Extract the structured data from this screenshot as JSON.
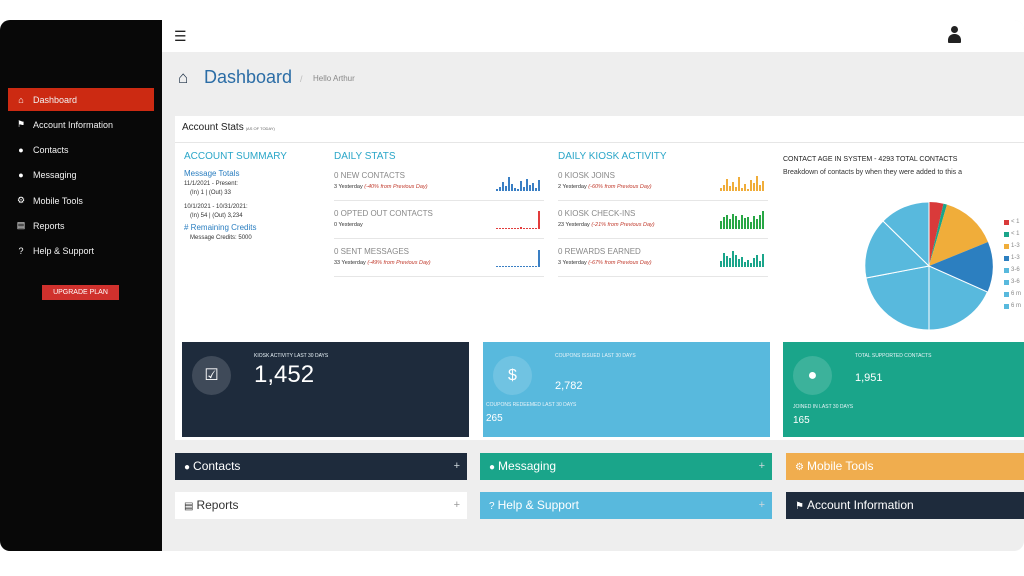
{
  "sidebar": {
    "items": [
      {
        "label": "Dashboard",
        "icon": "home-icon",
        "active": true
      },
      {
        "label": "Account Information",
        "icon": "flag-icon"
      },
      {
        "label": "Contacts",
        "icon": "users-icon"
      },
      {
        "label": "Messaging",
        "icon": "chat-icon"
      },
      {
        "label": "Mobile Tools",
        "icon": "gears-icon"
      },
      {
        "label": "Reports",
        "icon": "bar-chart-icon"
      },
      {
        "label": "Help & Support",
        "icon": "question-icon"
      }
    ],
    "upgrade_label": "UPGRADE PLAN"
  },
  "header": {
    "title": "Dashboard",
    "separator": "/",
    "greeting": "Hello Arthur"
  },
  "account_stats": {
    "title": "Account Stats",
    "subtitle": "(AS OF TODAY)",
    "summary": {
      "heading": "ACCOUNT SUMMARY",
      "message_totals_label": "Message Totals",
      "period1": "11/1/2021 - Present:",
      "period1_values": "(In) 1 | (Out) 33",
      "period2": "10/1/2021 - 10/31/2021:",
      "period2_values": "(In) 54 | (Out) 3,234",
      "credits_label": "# Remaining Credits",
      "credits_value": "Message Credits: 5000"
    },
    "daily_stats": {
      "heading": "DAILY STATS",
      "rows": [
        {
          "label": "0 NEW CONTACTS",
          "sub": "3 Yesterday",
          "change": "(-40% from Previous Day)"
        },
        {
          "label": "0 OPTED OUT CONTACTS",
          "sub": "0 Yesterday",
          "change": ""
        },
        {
          "label": "0 SENT MESSAGES",
          "sub": "33 Yesterday",
          "change": "(-49% from Previous Day)"
        }
      ]
    },
    "kiosk_activity": {
      "heading": "DAILY KIOSK ACTIVITY",
      "rows": [
        {
          "label": "0 KIOSK JOINS",
          "sub": "2 Yesterday",
          "change": "(-60% from Previous Day)"
        },
        {
          "label": "0 KIOSK CHECK-INS",
          "sub": "23 Yesterday",
          "change": "(-21% from Previous Day)"
        },
        {
          "label": "0 REWARDS EARNED",
          "sub": "3 Yesterday",
          "change": "(-67% from Previous Day)"
        }
      ]
    },
    "contact_age": {
      "title": "CONTACT AGE IN SYSTEM - 4293 TOTAL CONTACTS",
      "subtitle": "Breakdown of contacts by when they were added to this a",
      "legend": [
        "< 1",
        "< 1",
        "1-3",
        "1-3",
        "3-6",
        "3-6",
        "6 m",
        "6 m"
      ],
      "colors": [
        "#d93a3a",
        "#1aa58a",
        "#f0ad3a",
        "#2c7fc0",
        "#58b9dd",
        "#58b9dd",
        "#58b9dd",
        "#58b9dd"
      ]
    }
  },
  "cards": {
    "kiosk": {
      "label": "KIOSK ACTIVITY LAST 30 DAYS",
      "value": "1,452",
      "color": "#1e2b3c"
    },
    "coupons": {
      "label": "COUPONS ISSUED LAST 30 DAYS",
      "value": "2,782",
      "sub_label": "COUPONS REDEEMED LAST 30 DAYS",
      "sub_value": "265",
      "color": "#58b9dd"
    },
    "contacts": {
      "label": "TOTAL SUPPORTED CONTACTS",
      "value": "1,951",
      "sub_label": "JOINED IN LAST 30 DAYS",
      "sub_value": "165",
      "color": "#1aa58a"
    }
  },
  "panels": [
    {
      "label": "Contacts",
      "icon": "users-icon",
      "color": "#1e2b3c"
    },
    {
      "label": "Messaging",
      "icon": "chat-icon",
      "color": "#1aa58a"
    },
    {
      "label": "Mobile Tools",
      "icon": "gears-icon",
      "color": "#f0ad4e"
    },
    {
      "label": "Reports",
      "icon": "bar-chart-icon",
      "color": "#ffffff"
    },
    {
      "label": "Help & Support",
      "icon": "question-icon",
      "color": "#58b9dd"
    },
    {
      "label": "Account Information",
      "icon": "flag-icon",
      "color": "#1e2b3c"
    }
  ],
  "plus": "+"
}
